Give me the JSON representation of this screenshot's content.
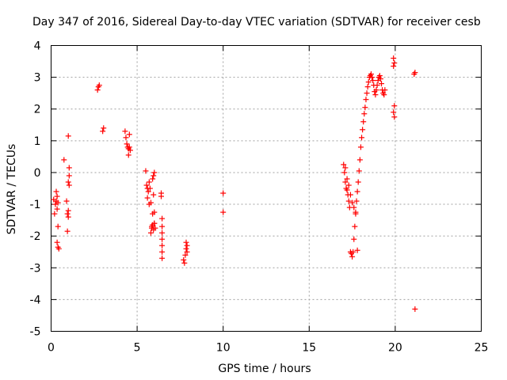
{
  "chart_data": {
    "type": "scatter",
    "title": "Day 347 of 2016, Sidereal Day-to-day VTEC variation (SDTVAR) for receiver cesb",
    "xlabel": "GPS time / hours",
    "ylabel": "SDTVAR / TECUs",
    "xlim": [
      0,
      25
    ],
    "ylim": [
      -5,
      4
    ],
    "xticks": [
      "0",
      "5",
      "10",
      "15",
      "20",
      "25"
    ],
    "yticks": [
      "-5",
      "-4",
      "-3",
      "-2",
      "-1",
      "0",
      "1",
      "2",
      "3",
      "4"
    ],
    "grid": true,
    "marker": "plus",
    "color": "#ff0000",
    "series": [
      {
        "name": "SDTVAR",
        "x": [
          0.15,
          0.2,
          0.25,
          0.3,
          0.3,
          0.35,
          0.35,
          0.4,
          0.35,
          0.4,
          0.4,
          0.45,
          0.75,
          0.9,
          0.95,
          1.0,
          0.95,
          1.0,
          1.05,
          1.05,
          1.0,
          1.05,
          1.0,
          2.7,
          2.75,
          2.8,
          3.0,
          3.05,
          4.3,
          4.35,
          4.4,
          4.45,
          4.5,
          4.5,
          4.55,
          4.55,
          4.6,
          5.5,
          5.55,
          5.6,
          5.6,
          5.65,
          5.7,
          5.7,
          5.75,
          5.8,
          5.8,
          5.85,
          5.9,
          5.9,
          5.95,
          6.0,
          6.0,
          5.85,
          5.9,
          5.95,
          6.0,
          6.05,
          6.0,
          5.95,
          6.4,
          6.4,
          6.45,
          6.45,
          6.45,
          6.45,
          6.45,
          6.45,
          6.45,
          7.7,
          7.75,
          7.8,
          7.85,
          7.85,
          7.9,
          7.9,
          10.0,
          10.0,
          17.0,
          17.05,
          17.1,
          17.15,
          17.2,
          17.25,
          17.3,
          17.35,
          17.4,
          17.45,
          17.5,
          17.55,
          17.6,
          17.65,
          17.7,
          17.75,
          17.8,
          17.85,
          17.9,
          17.95,
          18.0,
          18.05,
          18.1,
          18.15,
          18.2,
          18.25,
          18.3,
          18.35,
          18.4,
          18.45,
          18.5,
          18.55,
          18.6,
          18.65,
          18.7,
          18.75,
          18.8,
          18.85,
          18.9,
          18.95,
          19.0,
          19.05,
          19.1,
          19.15,
          19.2,
          19.25,
          19.3,
          19.35,
          19.4,
          17.1,
          17.2,
          17.3,
          17.4,
          17.5,
          17.6,
          17.7,
          17.8,
          19.9,
          19.95,
          19.9,
          19.95,
          19.9,
          19.95,
          21.1,
          21.15,
          21.15
        ],
        "y": [
          -0.85,
          -1.3,
          -1.0,
          -0.6,
          -0.9,
          -1.15,
          -0.75,
          -1.7,
          -2.2,
          -2.35,
          -0.95,
          -2.4,
          0.4,
          -0.9,
          -1.3,
          -1.4,
          -1.85,
          -0.3,
          -0.4,
          -0.1,
          -1.2,
          0.15,
          1.15,
          2.6,
          2.7,
          2.75,
          1.3,
          1.4,
          1.3,
          1.1,
          0.9,
          0.8,
          0.75,
          0.55,
          0.8,
          1.2,
          0.7,
          0.05,
          -0.4,
          -0.8,
          -0.5,
          -0.6,
          -0.3,
          -1.0,
          -0.5,
          -1.9,
          -0.95,
          -1.75,
          -1.3,
          -0.2,
          -0.1,
          0.0,
          -1.6,
          -1.7,
          -1.65,
          -1.8,
          -1.6,
          -1.75,
          -1.25,
          -0.7,
          -0.65,
          -0.75,
          -1.45,
          -1.7,
          -1.9,
          -2.1,
          -2.3,
          -2.5,
          -2.7,
          -2.75,
          -2.85,
          -2.6,
          -2.4,
          -2.2,
          -2.5,
          -2.3,
          -0.65,
          -1.25,
          0.25,
          0.0,
          -0.3,
          -0.5,
          -0.55,
          -0.7,
          -0.9,
          -1.1,
          -2.5,
          -2.55,
          -2.65,
          -2.5,
          -2.1,
          -1.7,
          -1.3,
          -0.9,
          -0.6,
          -0.3,
          0.05,
          0.4,
          0.8,
          1.1,
          1.35,
          1.6,
          1.85,
          2.05,
          2.3,
          2.5,
          2.7,
          2.85,
          3.0,
          3.05,
          3.1,
          3.0,
          2.9,
          2.75,
          2.55,
          2.45,
          2.6,
          2.75,
          2.9,
          3.0,
          3.05,
          2.95,
          2.8,
          2.6,
          2.5,
          2.45,
          2.6,
          0.15,
          -0.2,
          -0.4,
          -0.7,
          -0.95,
          -1.1,
          -1.25,
          -2.45,
          3.6,
          3.45,
          3.35,
          2.1,
          1.9,
          1.75,
          3.1,
          3.15,
          -4.3
        ]
      }
    ]
  }
}
